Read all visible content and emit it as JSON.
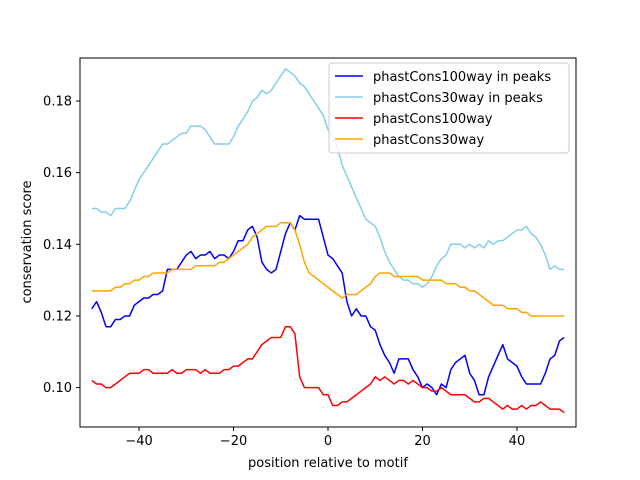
{
  "chart_data": {
    "type": "line",
    "title": "",
    "xlabel": "position relative to motif",
    "ylabel": "conservation score",
    "xlim": [
      -52.5,
      52.5
    ],
    "ylim": [
      0.089,
      0.192
    ],
    "xticks": [
      -40,
      -20,
      0,
      20,
      40
    ],
    "xtick_labels": [
      "−40",
      "−20",
      "0",
      "20",
      "40"
    ],
    "yticks": [
      0.1,
      0.12,
      0.14,
      0.16,
      0.18
    ],
    "ytick_labels": [
      "0.10",
      "0.12",
      "0.14",
      "0.16",
      "0.18"
    ],
    "grid": false,
    "legend_position": "top-right",
    "series": [
      {
        "name": "phastCons100way in peaks",
        "color": "#0000ff",
        "x": [
          -50,
          -49,
          -48,
          -47,
          -46,
          -45,
          -44,
          -43,
          -42,
          -41,
          -40,
          -39,
          -38,
          -37,
          -36,
          -35,
          -34,
          -33,
          -32,
          -31,
          -30,
          -29,
          -28,
          -27,
          -26,
          -25,
          -24,
          -23,
          -22,
          -21,
          -20,
          -19,
          -18,
          -17,
          -16,
          -15,
          -14,
          -13,
          -12,
          -11,
          -10,
          -9,
          -8,
          -7,
          -6,
          -5,
          -4,
          -3,
          -2,
          -1,
          0,
          1,
          2,
          3,
          4,
          5,
          6,
          7,
          8,
          9,
          10,
          11,
          12,
          13,
          14,
          15,
          16,
          17,
          18,
          19,
          20,
          21,
          22,
          23,
          24,
          25,
          26,
          27,
          28,
          29,
          30,
          31,
          32,
          33,
          34,
          35,
          36,
          37,
          38,
          39,
          40,
          41,
          42,
          43,
          44,
          45,
          46,
          47,
          48,
          49,
          50
        ],
        "values": [
          0.122,
          0.124,
          0.121,
          0.117,
          0.117,
          0.119,
          0.119,
          0.12,
          0.12,
          0.123,
          0.124,
          0.125,
          0.125,
          0.126,
          0.126,
          0.127,
          0.133,
          0.133,
          0.133,
          0.135,
          0.137,
          0.138,
          0.136,
          0.137,
          0.137,
          0.138,
          0.136,
          0.137,
          0.137,
          0.136,
          0.138,
          0.141,
          0.141,
          0.144,
          0.145,
          0.142,
          0.135,
          0.133,
          0.132,
          0.133,
          0.138,
          0.143,
          0.146,
          0.144,
          0.148,
          0.147,
          0.147,
          0.147,
          0.147,
          0.142,
          0.137,
          0.136,
          0.134,
          0.132,
          0.124,
          0.12,
          0.122,
          0.12,
          0.12,
          0.117,
          0.116,
          0.112,
          0.109,
          0.107,
          0.104,
          0.108,
          0.108,
          0.108,
          0.105,
          0.103,
          0.1,
          0.101,
          0.1,
          0.098,
          0.101,
          0.1,
          0.105,
          0.107,
          0.108,
          0.109,
          0.104,
          0.102,
          0.098,
          0.098,
          0.103,
          0.106,
          0.109,
          0.112,
          0.108,
          0.107,
          0.106,
          0.103,
          0.101,
          0.101,
          0.101,
          0.101,
          0.104,
          0.108,
          0.109,
          0.113,
          0.114
        ]
      },
      {
        "name": "phastCons30way in peaks",
        "color": "#87ceeb",
        "x": [
          -50,
          -49,
          -48,
          -47,
          -46,
          -45,
          -44,
          -43,
          -42,
          -41,
          -40,
          -39,
          -38,
          -37,
          -36,
          -35,
          -34,
          -33,
          -32,
          -31,
          -30,
          -29,
          -28,
          -27,
          -26,
          -25,
          -24,
          -23,
          -22,
          -21,
          -20,
          -19,
          -18,
          -17,
          -16,
          -15,
          -14,
          -13,
          -12,
          -11,
          -10,
          -9,
          -8,
          -7,
          -6,
          -5,
          -4,
          -3,
          -2,
          -1,
          0,
          1,
          2,
          3,
          4,
          5,
          6,
          7,
          8,
          9,
          10,
          11,
          12,
          13,
          14,
          15,
          16,
          17,
          18,
          19,
          20,
          21,
          22,
          23,
          24,
          25,
          26,
          27,
          28,
          29,
          30,
          31,
          32,
          33,
          34,
          35,
          36,
          37,
          38,
          39,
          40,
          41,
          42,
          43,
          44,
          45,
          46,
          47,
          48,
          49,
          50
        ],
        "values": [
          0.15,
          0.15,
          0.149,
          0.149,
          0.148,
          0.15,
          0.15,
          0.15,
          0.152,
          0.155,
          0.158,
          0.16,
          0.162,
          0.164,
          0.166,
          0.168,
          0.168,
          0.169,
          0.17,
          0.171,
          0.171,
          0.173,
          0.173,
          0.173,
          0.172,
          0.17,
          0.168,
          0.168,
          0.168,
          0.168,
          0.17,
          0.173,
          0.175,
          0.177,
          0.18,
          0.181,
          0.183,
          0.182,
          0.183,
          0.185,
          0.187,
          0.189,
          0.188,
          0.187,
          0.185,
          0.184,
          0.182,
          0.18,
          0.178,
          0.176,
          0.172,
          0.17,
          0.167,
          0.162,
          0.159,
          0.156,
          0.153,
          0.15,
          0.147,
          0.146,
          0.145,
          0.142,
          0.138,
          0.135,
          0.133,
          0.131,
          0.13,
          0.13,
          0.129,
          0.129,
          0.128,
          0.129,
          0.131,
          0.134,
          0.136,
          0.137,
          0.14,
          0.14,
          0.14,
          0.139,
          0.14,
          0.139,
          0.14,
          0.139,
          0.141,
          0.14,
          0.141,
          0.141,
          0.142,
          0.143,
          0.144,
          0.144,
          0.145,
          0.143,
          0.142,
          0.14,
          0.137,
          0.133,
          0.134,
          0.133,
          0.133
        ]
      },
      {
        "name": "phastCons100way",
        "color": "#ff0000",
        "x": [
          -50,
          -49,
          -48,
          -47,
          -46,
          -45,
          -44,
          -43,
          -42,
          -41,
          -40,
          -39,
          -38,
          -37,
          -36,
          -35,
          -34,
          -33,
          -32,
          -31,
          -30,
          -29,
          -28,
          -27,
          -26,
          -25,
          -24,
          -23,
          -22,
          -21,
          -20,
          -19,
          -18,
          -17,
          -16,
          -15,
          -14,
          -13,
          -12,
          -11,
          -10,
          -9,
          -8,
          -7,
          -6,
          -5,
          -4,
          -3,
          -2,
          -1,
          0,
          1,
          2,
          3,
          4,
          5,
          6,
          7,
          8,
          9,
          10,
          11,
          12,
          13,
          14,
          15,
          16,
          17,
          18,
          19,
          20,
          21,
          22,
          23,
          24,
          25,
          26,
          27,
          28,
          29,
          30,
          31,
          32,
          33,
          34,
          35,
          36,
          37,
          38,
          39,
          40,
          41,
          42,
          43,
          44,
          45,
          46,
          47,
          48,
          49,
          50
        ],
        "values": [
          0.102,
          0.101,
          0.101,
          0.1,
          0.1,
          0.101,
          0.102,
          0.103,
          0.104,
          0.104,
          0.104,
          0.105,
          0.105,
          0.104,
          0.104,
          0.104,
          0.104,
          0.105,
          0.104,
          0.104,
          0.105,
          0.105,
          0.105,
          0.104,
          0.105,
          0.104,
          0.104,
          0.104,
          0.105,
          0.105,
          0.106,
          0.106,
          0.107,
          0.108,
          0.108,
          0.11,
          0.112,
          0.113,
          0.114,
          0.114,
          0.114,
          0.117,
          0.117,
          0.115,
          0.103,
          0.1,
          0.1,
          0.1,
          0.1,
          0.098,
          0.098,
          0.095,
          0.095,
          0.096,
          0.096,
          0.097,
          0.098,
          0.099,
          0.1,
          0.101,
          0.103,
          0.102,
          0.103,
          0.102,
          0.101,
          0.102,
          0.102,
          0.101,
          0.102,
          0.101,
          0.1,
          0.1,
          0.099,
          0.099,
          0.1,
          0.099,
          0.098,
          0.098,
          0.098,
          0.098,
          0.097,
          0.096,
          0.096,
          0.097,
          0.097,
          0.096,
          0.095,
          0.094,
          0.095,
          0.094,
          0.094,
          0.095,
          0.094,
          0.095,
          0.095,
          0.096,
          0.095,
          0.094,
          0.094,
          0.094,
          0.093
        ]
      },
      {
        "name": "phastCons30way",
        "color": "#ffa500",
        "x": [
          -50,
          -49,
          -48,
          -47,
          -46,
          -45,
          -44,
          -43,
          -42,
          -41,
          -40,
          -39,
          -38,
          -37,
          -36,
          -35,
          -34,
          -33,
          -32,
          -31,
          -30,
          -29,
          -28,
          -27,
          -26,
          -25,
          -24,
          -23,
          -22,
          -21,
          -20,
          -19,
          -18,
          -17,
          -16,
          -15,
          -14,
          -13,
          -12,
          -11,
          -10,
          -9,
          -8,
          -7,
          -6,
          -5,
          -4,
          -3,
          -2,
          -1,
          0,
          1,
          2,
          3,
          4,
          5,
          6,
          7,
          8,
          9,
          10,
          11,
          12,
          13,
          14,
          15,
          16,
          17,
          18,
          19,
          20,
          21,
          22,
          23,
          24,
          25,
          26,
          27,
          28,
          29,
          30,
          31,
          32,
          33,
          34,
          35,
          36,
          37,
          38,
          39,
          40,
          41,
          42,
          43,
          44,
          45,
          46,
          47,
          48,
          49,
          50
        ],
        "values": [
          0.127,
          0.127,
          0.127,
          0.127,
          0.127,
          0.128,
          0.128,
          0.129,
          0.129,
          0.13,
          0.13,
          0.131,
          0.131,
          0.132,
          0.132,
          0.132,
          0.132,
          0.133,
          0.133,
          0.133,
          0.133,
          0.133,
          0.134,
          0.134,
          0.134,
          0.134,
          0.134,
          0.135,
          0.135,
          0.136,
          0.137,
          0.138,
          0.139,
          0.14,
          0.142,
          0.143,
          0.144,
          0.145,
          0.145,
          0.145,
          0.146,
          0.146,
          0.146,
          0.144,
          0.14,
          0.135,
          0.132,
          0.131,
          0.13,
          0.129,
          0.128,
          0.127,
          0.126,
          0.125,
          0.126,
          0.126,
          0.126,
          0.127,
          0.128,
          0.129,
          0.131,
          0.132,
          0.132,
          0.132,
          0.131,
          0.131,
          0.131,
          0.131,
          0.131,
          0.131,
          0.13,
          0.13,
          0.13,
          0.13,
          0.13,
          0.129,
          0.129,
          0.129,
          0.128,
          0.128,
          0.127,
          0.127,
          0.126,
          0.125,
          0.124,
          0.123,
          0.123,
          0.123,
          0.122,
          0.122,
          0.122,
          0.121,
          0.121,
          0.12,
          0.12,
          0.12,
          0.12,
          0.12,
          0.12,
          0.12,
          0.12
        ]
      }
    ]
  }
}
